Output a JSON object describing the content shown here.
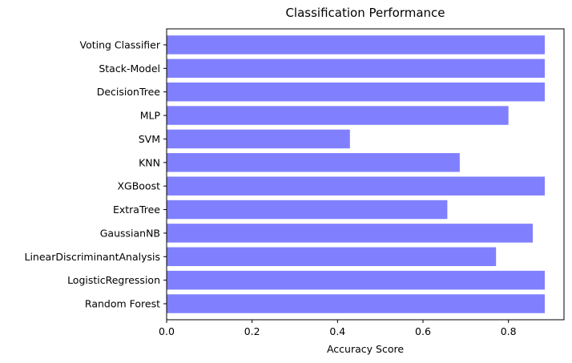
{
  "chart_data": {
    "type": "bar",
    "orientation": "horizontal",
    "title": "Classification Performance",
    "xlabel": "Accuracy Score",
    "ylabel": "",
    "xlim": [
      0,
      0.93
    ],
    "x_ticks": [
      0.0,
      0.2,
      0.4,
      0.6,
      0.8
    ],
    "x_tick_labels": [
      "0.0",
      "0.2",
      "0.4",
      "0.6",
      "0.8"
    ],
    "categories": [
      "Random Forest",
      "LogisticRegression",
      "LinearDiscriminantAnalysis",
      "GaussianNB",
      "ExtraTree",
      "XGBoost",
      "KNN",
      "SVM",
      "MLP",
      "DecisionTree",
      "Stack-Model",
      "Voting Classifier"
    ],
    "values": [
      0.885,
      0.885,
      0.771,
      0.857,
      0.657,
      0.885,
      0.686,
      0.429,
      0.8,
      0.885,
      0.885,
      0.885
    ],
    "bar_color": "#8080ff",
    "grid": false,
    "legend": "none"
  }
}
